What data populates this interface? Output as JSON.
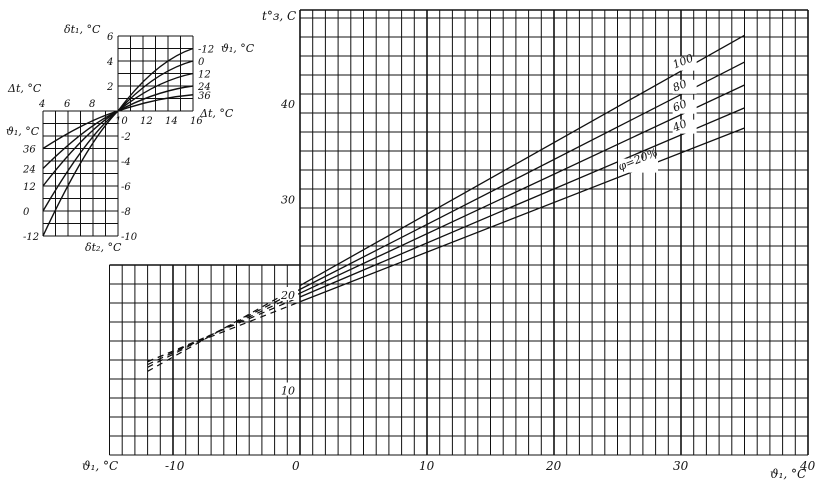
{
  "chart_data": [
    {
      "type": "line",
      "xlabel": "ϑ₁, °C",
      "xlabel_left": "ϑ₁, °C",
      "ylabel": "t°з, C",
      "xlim": [
        -15,
        40
      ],
      "ylim": [
        4,
        50
      ],
      "grid": true,
      "x_ticks": [
        "-10",
        "0",
        "10",
        "20",
        "30",
        "40"
      ],
      "x_tick_values": [
        -10,
        0,
        10,
        20,
        30,
        40
      ],
      "y_ticks": [
        "10",
        "20",
        "30",
        "40"
      ],
      "y_tick_values": [
        10,
        20,
        30,
        40
      ],
      "x": [
        0,
        35
      ],
      "dashed_extension_to_x": -12,
      "series": [
        {
          "name": "100",
          "values": [
            21.2,
            47.4
          ]
        },
        {
          "name": "80",
          "values": [
            20.8,
            44.6
          ]
        },
        {
          "name": "60",
          "values": [
            20.4,
            42.2
          ]
        },
        {
          "name": "40",
          "values": [
            20.0,
            39.8
          ]
        },
        {
          "name": "φ=20%",
          "values": [
            19.5,
            37.7
          ]
        }
      ],
      "color": "#111111"
    },
    {
      "type": "line",
      "panel": "inset-upper",
      "xlabel": "Δt, °C",
      "ylabel": "δt₁, °C",
      "legend_title": "ϑ₁, °C",
      "xlim": [
        10,
        16
      ],
      "ylim": [
        0,
        6
      ],
      "x_ticks": [
        "10",
        "12",
        "14",
        "16"
      ],
      "y_ticks": [
        "2",
        "4",
        "6"
      ],
      "x": [
        10,
        16
      ],
      "series": [
        {
          "name": "-12",
          "values": [
            0,
            5
          ]
        },
        {
          "name": "0",
          "values": [
            0,
            4
          ]
        },
        {
          "name": "12",
          "values": [
            0,
            3
          ]
        },
        {
          "name": "24",
          "values": [
            0,
            2
          ]
        },
        {
          "name": "36",
          "values": [
            0,
            1.3
          ]
        }
      ]
    },
    {
      "type": "line",
      "panel": "inset-lower",
      "xlabel": "Δt, °C",
      "ylabel": "δt₂, °C",
      "legend_title": "ϑ₁, °C",
      "xlim": [
        4,
        10
      ],
      "ylim": [
        -10,
        0
      ],
      "x_ticks": [
        "4",
        "6",
        "8"
      ],
      "y_ticks": [
        "-2",
        "-4",
        "-6",
        "-8",
        "-10"
      ],
      "x": [
        4,
        10
      ],
      "series": [
        {
          "name": "36",
          "values": [
            -3,
            0
          ]
        },
        {
          "name": "24",
          "values": [
            -4.6,
            0
          ]
        },
        {
          "name": "12",
          "values": [
            -6,
            0
          ]
        },
        {
          "name": "0",
          "values": [
            -8,
            0
          ]
        },
        {
          "name": "-12",
          "values": [
            -10,
            0
          ]
        }
      ]
    }
  ]
}
